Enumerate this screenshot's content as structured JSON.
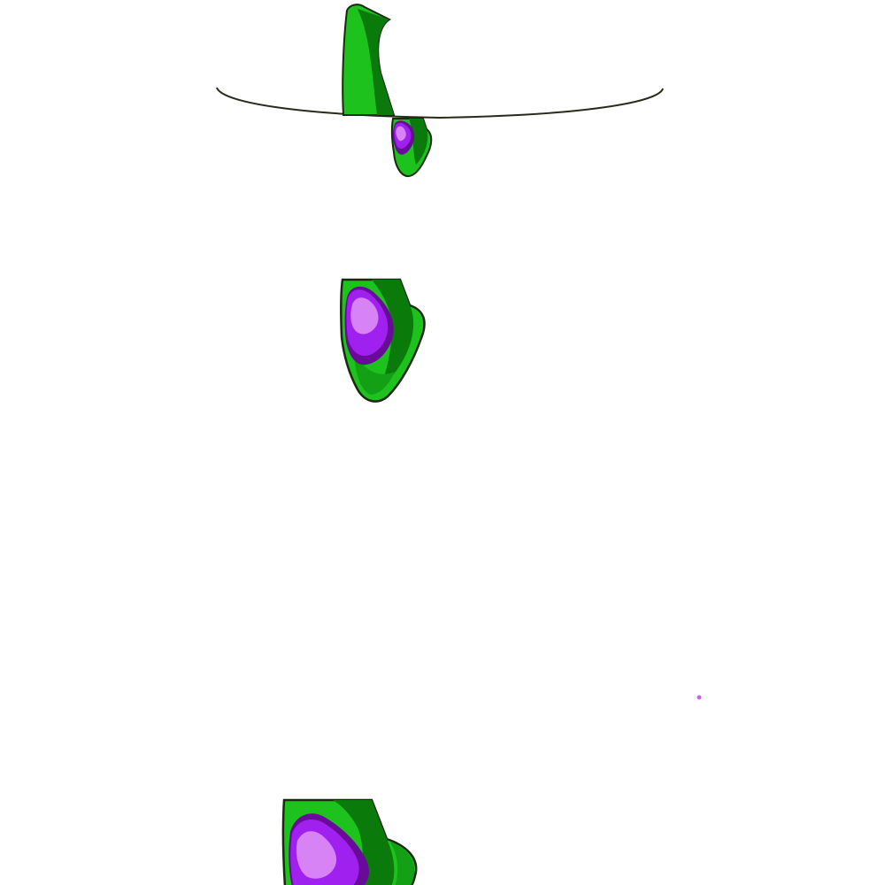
{
  "scene": {
    "background": "#ffffff",
    "ground_line_color": "#2a2a1a",
    "outline_color": "#1a2a10",
    "palette": {
      "leaf_light": "#1dc21d",
      "leaf_dark": "#0a7a0a",
      "leaf_base": "#14a014",
      "gem_outer": "#6a0a9a",
      "gem_mid": "#a020f0",
      "gem_light": "#d783f5",
      "speck": "#c864e6"
    },
    "figures": [
      {
        "name": "sprout-above-line"
      },
      {
        "name": "pod-under-line"
      },
      {
        "name": "pod-middle"
      },
      {
        "name": "pod-bottom"
      }
    ]
  }
}
